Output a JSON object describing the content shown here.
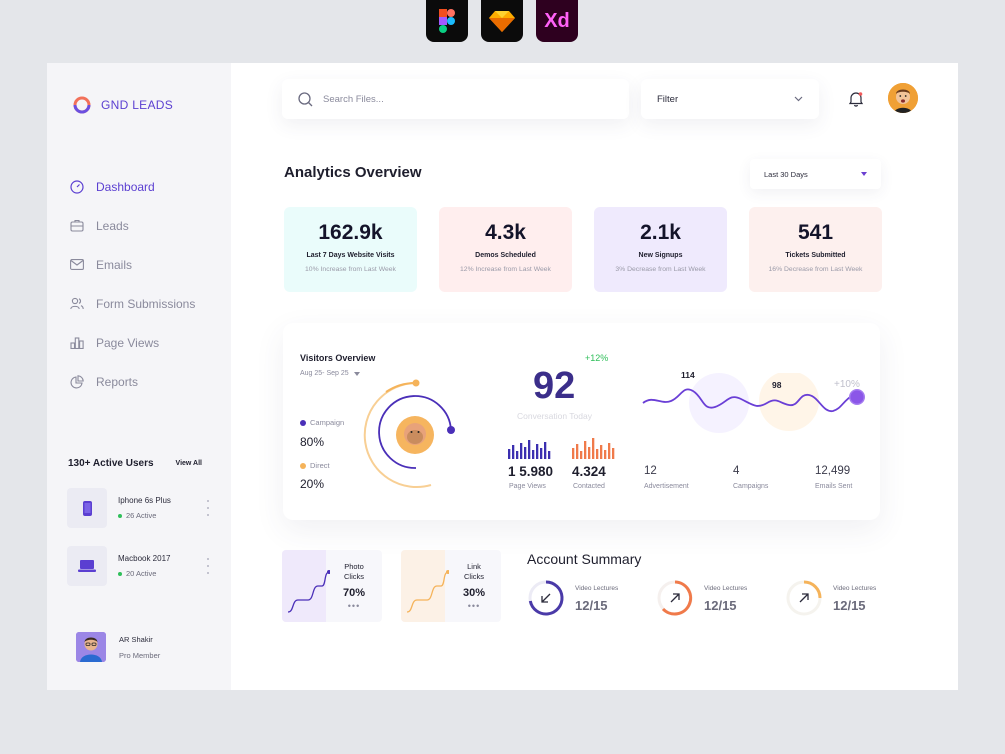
{
  "tools": [
    "figma-icon",
    "sketch-icon",
    "xd-icon"
  ],
  "tool_xd_label": "Xd",
  "app": {
    "name": "GND LEADS"
  },
  "nav": [
    {
      "label": "Dashboard",
      "icon": "gauge-icon",
      "active": true
    },
    {
      "label": "Leads",
      "icon": "briefcase-icon"
    },
    {
      "label": "Emails",
      "icon": "mail-icon"
    },
    {
      "label": "Form Submissions",
      "icon": "users-icon"
    },
    {
      "label": "Page Views",
      "icon": "bar-chart-icon"
    },
    {
      "label": "Reports",
      "icon": "pie-chart-icon"
    }
  ],
  "users": {
    "title": "130+ Active Users",
    "view_all": "View All",
    "devices": [
      {
        "name": "Iphone 6s Plus",
        "active": "26 Active",
        "icon": "phone-icon"
      },
      {
        "name": "Macbook 2017",
        "active": "20 Active",
        "icon": "laptop-icon"
      }
    ]
  },
  "profile": {
    "name": "AR Shakir",
    "role": "Pro Member"
  },
  "search": {
    "placeholder": "Search Files..."
  },
  "filter": {
    "label": "Filter"
  },
  "analytics": {
    "title": "Analytics Overview",
    "range": "Last 30 Days",
    "stats": [
      {
        "value": "162.9k",
        "label": "Last 7 Days Website Visits",
        "sub": "10% Increase from Last Week",
        "bg": "#eafcfb"
      },
      {
        "value": "4.3k",
        "label": "Demos Scheduled",
        "sub": "12% Increase from Last Week",
        "bg": "#ffeeee"
      },
      {
        "value": "2.1k",
        "label": "New Signups",
        "sub": "3% Decrease from Last Week",
        "bg": "#efeafd"
      },
      {
        "value": "541",
        "label": "Tickets Submitted",
        "sub": "16% Decrease from Last Week",
        "bg": "#fdf0ee"
      }
    ]
  },
  "visitors": {
    "title": "Visitors Overview",
    "date": "Aug 25- Sep 25",
    "campaign_label": "Campaign",
    "campaign_value": "80%",
    "direct_label": "Direct",
    "direct_value": "20%",
    "big_number": "92",
    "change": "+12%",
    "conversation_label": "Conversation Today",
    "page_views_value": "1 5.980",
    "page_views_label": "Page Views",
    "contacted_value": "4.324",
    "contacted_label": "Contacted",
    "wave_label_1": "114",
    "wave_label_2": "98",
    "wave_label_3": "+10%",
    "footer": [
      {
        "value": "12",
        "label": "Advertisement"
      },
      {
        "value": "4",
        "label": "Campaigns"
      },
      {
        "value": "12,499",
        "label": "Emails Sent"
      }
    ]
  },
  "clicks": [
    {
      "label_line1": "Photo",
      "label_line2": "Clicks",
      "value": "70%",
      "dots": "•••"
    },
    {
      "label_line1": "Link",
      "label_line2": "Clicks",
      "value": "30%",
      "dots": "•••"
    }
  ],
  "account": {
    "title": "Account Summary",
    "items": [
      {
        "label": "Video Lectures",
        "value": "12/15",
        "color": "#4a3aa8",
        "icon": "arrow-down-left-icon"
      },
      {
        "label": "Video Lectures",
        "value": "12/15",
        "color": "#f07a4a",
        "icon": "arrow-up-right-icon"
      },
      {
        "label": "Video Lectures",
        "value": "12/15",
        "color": "#f5b35a",
        "icon": "arrow-up-right-icon"
      }
    ]
  },
  "colors": {
    "accent": "#5b3fd1",
    "orange": "#f5a840",
    "green": "#2fbf5a"
  }
}
